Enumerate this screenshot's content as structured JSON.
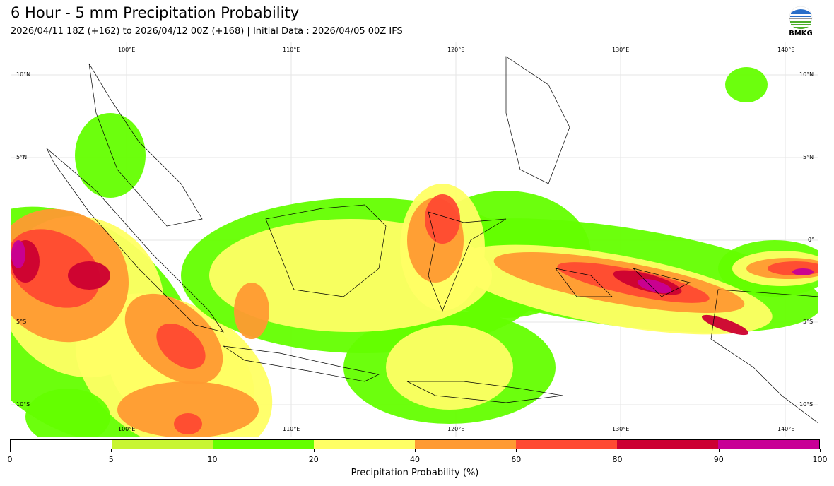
{
  "header": {
    "title": "6 Hour - 5 mm Precipitation Probability",
    "subtitle": "2026/04/11 18Z (+162) to 2026/04/12 00Z (+168) | Initial Data : 2026/04/05 00Z IFS",
    "logo_text": "BMKG"
  },
  "map": {
    "lon_labels": [
      "100°E",
      "110°E",
      "120°E",
      "130°E",
      "140°E"
    ],
    "lat_labels": [
      "10°N",
      "5°N",
      "0°",
      "5°S",
      "10°S"
    ]
  },
  "colorbar": {
    "label": "Precipitation Probability (%)",
    "ticks": [
      "0",
      "5",
      "10",
      "20",
      "40",
      "60",
      "80",
      "90",
      "100"
    ],
    "colors": [
      "#ffffff",
      "#c8f532",
      "#64ff00",
      "#ffff64",
      "#ff9a32",
      "#ff4a32",
      "#cc0032",
      "#c80096"
    ]
  }
}
